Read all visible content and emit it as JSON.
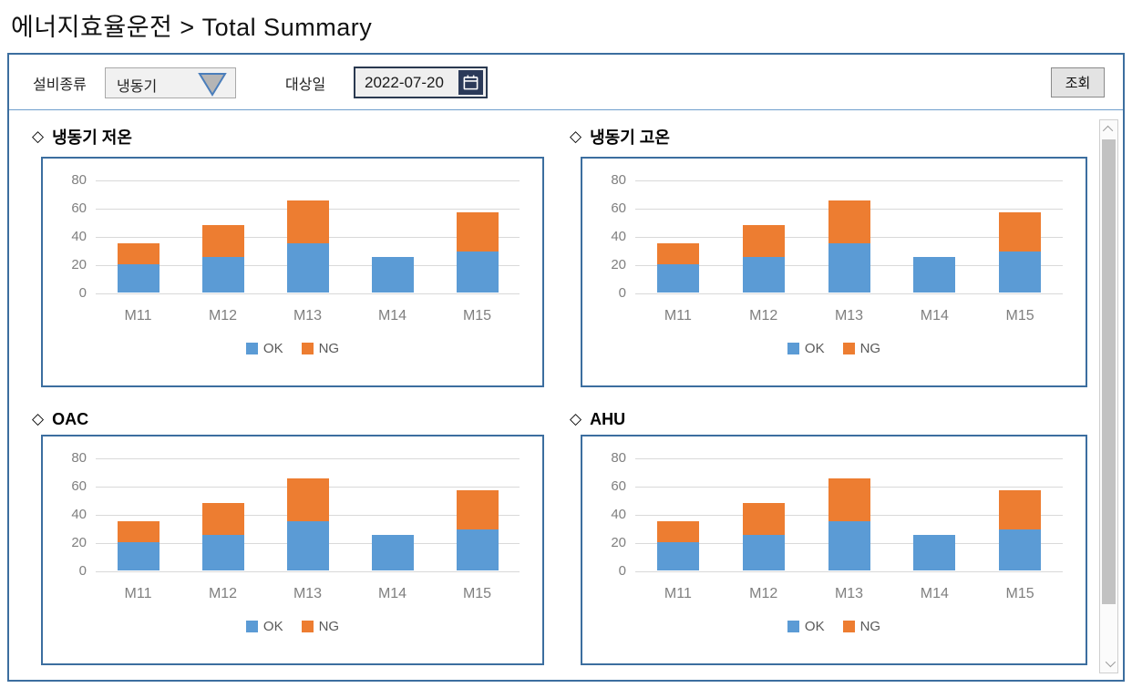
{
  "header": {
    "title": "에너지효율운전 > Total Summary"
  },
  "filter": {
    "equipment_label": "설비종류",
    "equipment_value": "냉동기",
    "date_label": "대상일",
    "date_value": "2022-07-20",
    "search_button_label": "조회"
  },
  "section_prefix": "◇",
  "colors": {
    "ok_series": "#5B9BD5",
    "ng_series": "#ED7D31",
    "frame_border": "#3c6e9f",
    "gridline": "#d9d9d9"
  },
  "chart_data": [
    {
      "type": "bar",
      "stacked": true,
      "title": "냉동기 저온",
      "categories": [
        "M11",
        "M12",
        "M13",
        "M14",
        "M15"
      ],
      "series": [
        {
          "name": "OK",
          "color": "#5B9BD5",
          "values": [
            20,
            25,
            35,
            25,
            29
          ]
        },
        {
          "name": "NG",
          "color": "#ED7D31",
          "values": [
            15,
            23,
            30,
            0,
            28
          ]
        }
      ],
      "ylim": [
        0,
        80
      ],
      "yticks": [
        0,
        20,
        40,
        60,
        80
      ],
      "grid": true,
      "legend_position": "bottom"
    },
    {
      "type": "bar",
      "stacked": true,
      "title": "냉동기 고온",
      "categories": [
        "M11",
        "M12",
        "M13",
        "M14",
        "M15"
      ],
      "series": [
        {
          "name": "OK",
          "color": "#5B9BD5",
          "values": [
            20,
            25,
            35,
            25,
            29
          ]
        },
        {
          "name": "NG",
          "color": "#ED7D31",
          "values": [
            15,
            23,
            30,
            0,
            28
          ]
        }
      ],
      "ylim": [
        0,
        80
      ],
      "yticks": [
        0,
        20,
        40,
        60,
        80
      ],
      "grid": true,
      "legend_position": "bottom"
    },
    {
      "type": "bar",
      "stacked": true,
      "title": "OAC",
      "categories": [
        "M11",
        "M12",
        "M13",
        "M14",
        "M15"
      ],
      "series": [
        {
          "name": "OK",
          "color": "#5B9BD5",
          "values": [
            20,
            25,
            35,
            25,
            29
          ]
        },
        {
          "name": "NG",
          "color": "#ED7D31",
          "values": [
            15,
            23,
            30,
            0,
            28
          ]
        }
      ],
      "ylim": [
        0,
        80
      ],
      "yticks": [
        0,
        20,
        40,
        60,
        80
      ],
      "grid": true,
      "legend_position": "bottom"
    },
    {
      "type": "bar",
      "stacked": true,
      "title": "AHU",
      "categories": [
        "M11",
        "M12",
        "M13",
        "M14",
        "M15"
      ],
      "series": [
        {
          "name": "OK",
          "color": "#5B9BD5",
          "values": [
            20,
            25,
            35,
            25,
            29
          ]
        },
        {
          "name": "NG",
          "color": "#ED7D31",
          "values": [
            15,
            23,
            30,
            0,
            28
          ]
        }
      ],
      "ylim": [
        0,
        80
      ],
      "yticks": [
        0,
        20,
        40,
        60,
        80
      ],
      "grid": true,
      "legend_position": "bottom"
    }
  ]
}
